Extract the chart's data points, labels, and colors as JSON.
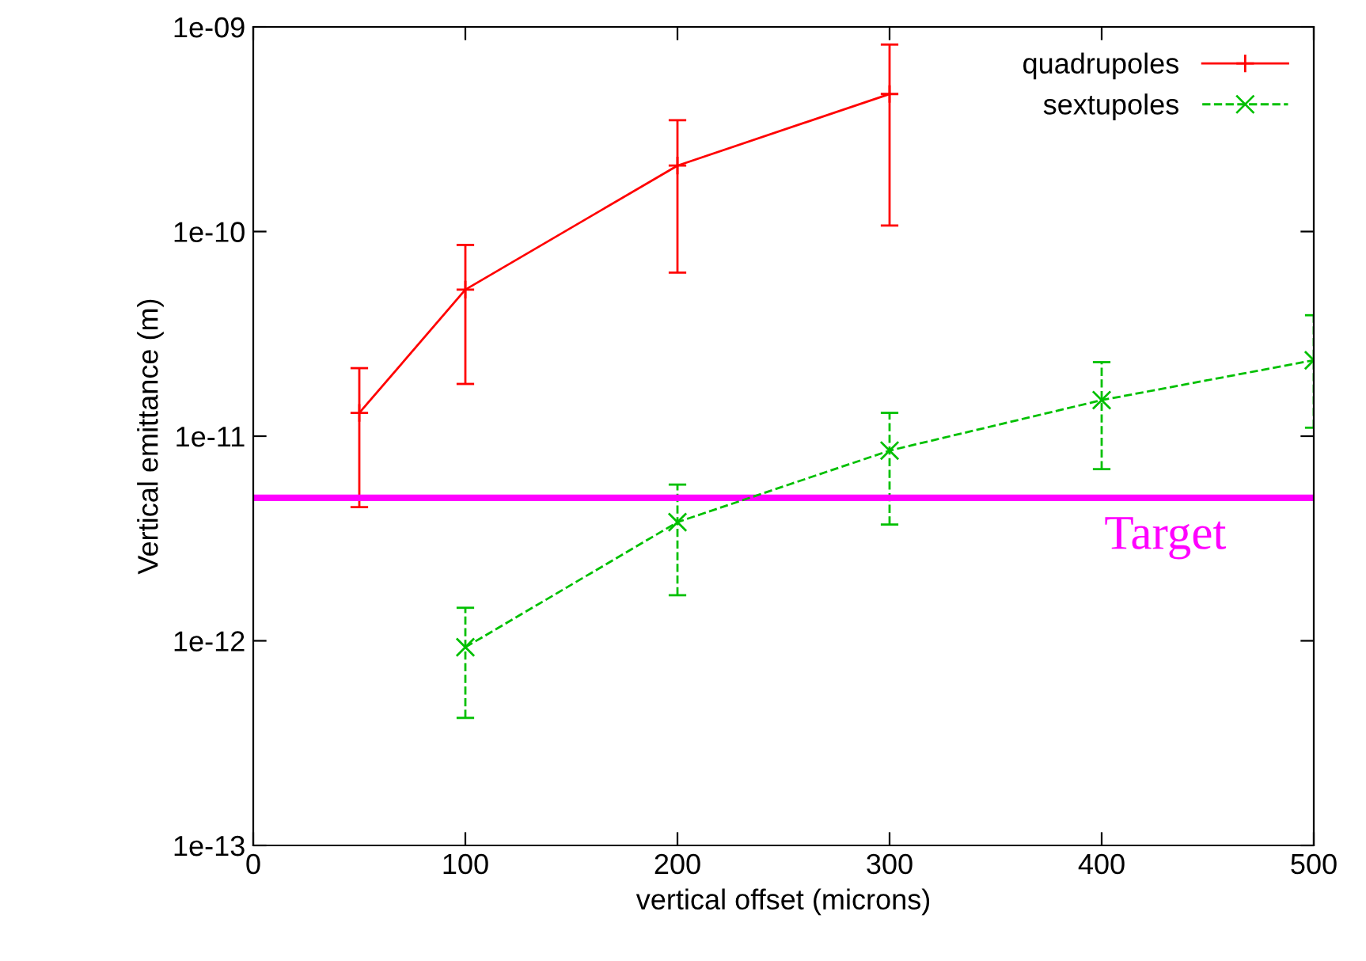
{
  "chart_data": {
    "type": "line",
    "xlabel": "vertical offset (microns)",
    "ylabel": "Vertical emittance (m)",
    "log": "y",
    "xlim": [
      0,
      500
    ],
    "xticks": [
      0,
      100,
      200,
      300,
      400,
      500
    ],
    "ylim": [
      1e-13,
      1e-09
    ],
    "yticks": [
      {
        "value": 1e-13,
        "label": "1e-13"
      },
      {
        "value": 1e-12,
        "label": "1e-12"
      },
      {
        "value": 1e-11,
        "label": "1e-11"
      },
      {
        "value": 1e-10,
        "label": "1e-10"
      },
      {
        "value": 1e-09,
        "label": "1e-09"
      }
    ],
    "grid": false,
    "legend": "top right",
    "series": [
      {
        "name": "quadrupoles",
        "color": "#ff0000",
        "marker": "plus",
        "line_style": "solid",
        "x": [
          50,
          100,
          200,
          300
        ],
        "values": [
          1.3e-11,
          5.2e-11,
          2.1e-10,
          4.7e-10
        ],
        "errors": [
          [
            4.5e-12,
            2.15e-11
          ],
          [
            1.8e-11,
            8.6e-11
          ],
          [
            6.3e-11,
            3.5e-10
          ],
          [
            1.07e-10,
            8.2e-10
          ]
        ]
      },
      {
        "name": "sextupoles",
        "color": "#00c000",
        "marker": "cross",
        "line_style": "dashed",
        "x": [
          100,
          200,
          300,
          400,
          500
        ],
        "values": [
          9.3e-13,
          3.8e-12,
          8.5e-12,
          1.5e-11,
          2.35e-11
        ],
        "errors": [
          [
            4.2e-13,
            1.45e-12
          ],
          [
            1.67e-12,
            5.8e-12
          ],
          [
            3.7e-12,
            1.3e-11
          ],
          [
            6.9e-12,
            2.3e-11
          ],
          [
            1.1e-11,
            3.9e-11
          ]
        ]
      }
    ],
    "ref_lines": [
      {
        "axis": "y",
        "value": 5e-12,
        "label": "Target",
        "color": "#ff00ff"
      }
    ]
  }
}
